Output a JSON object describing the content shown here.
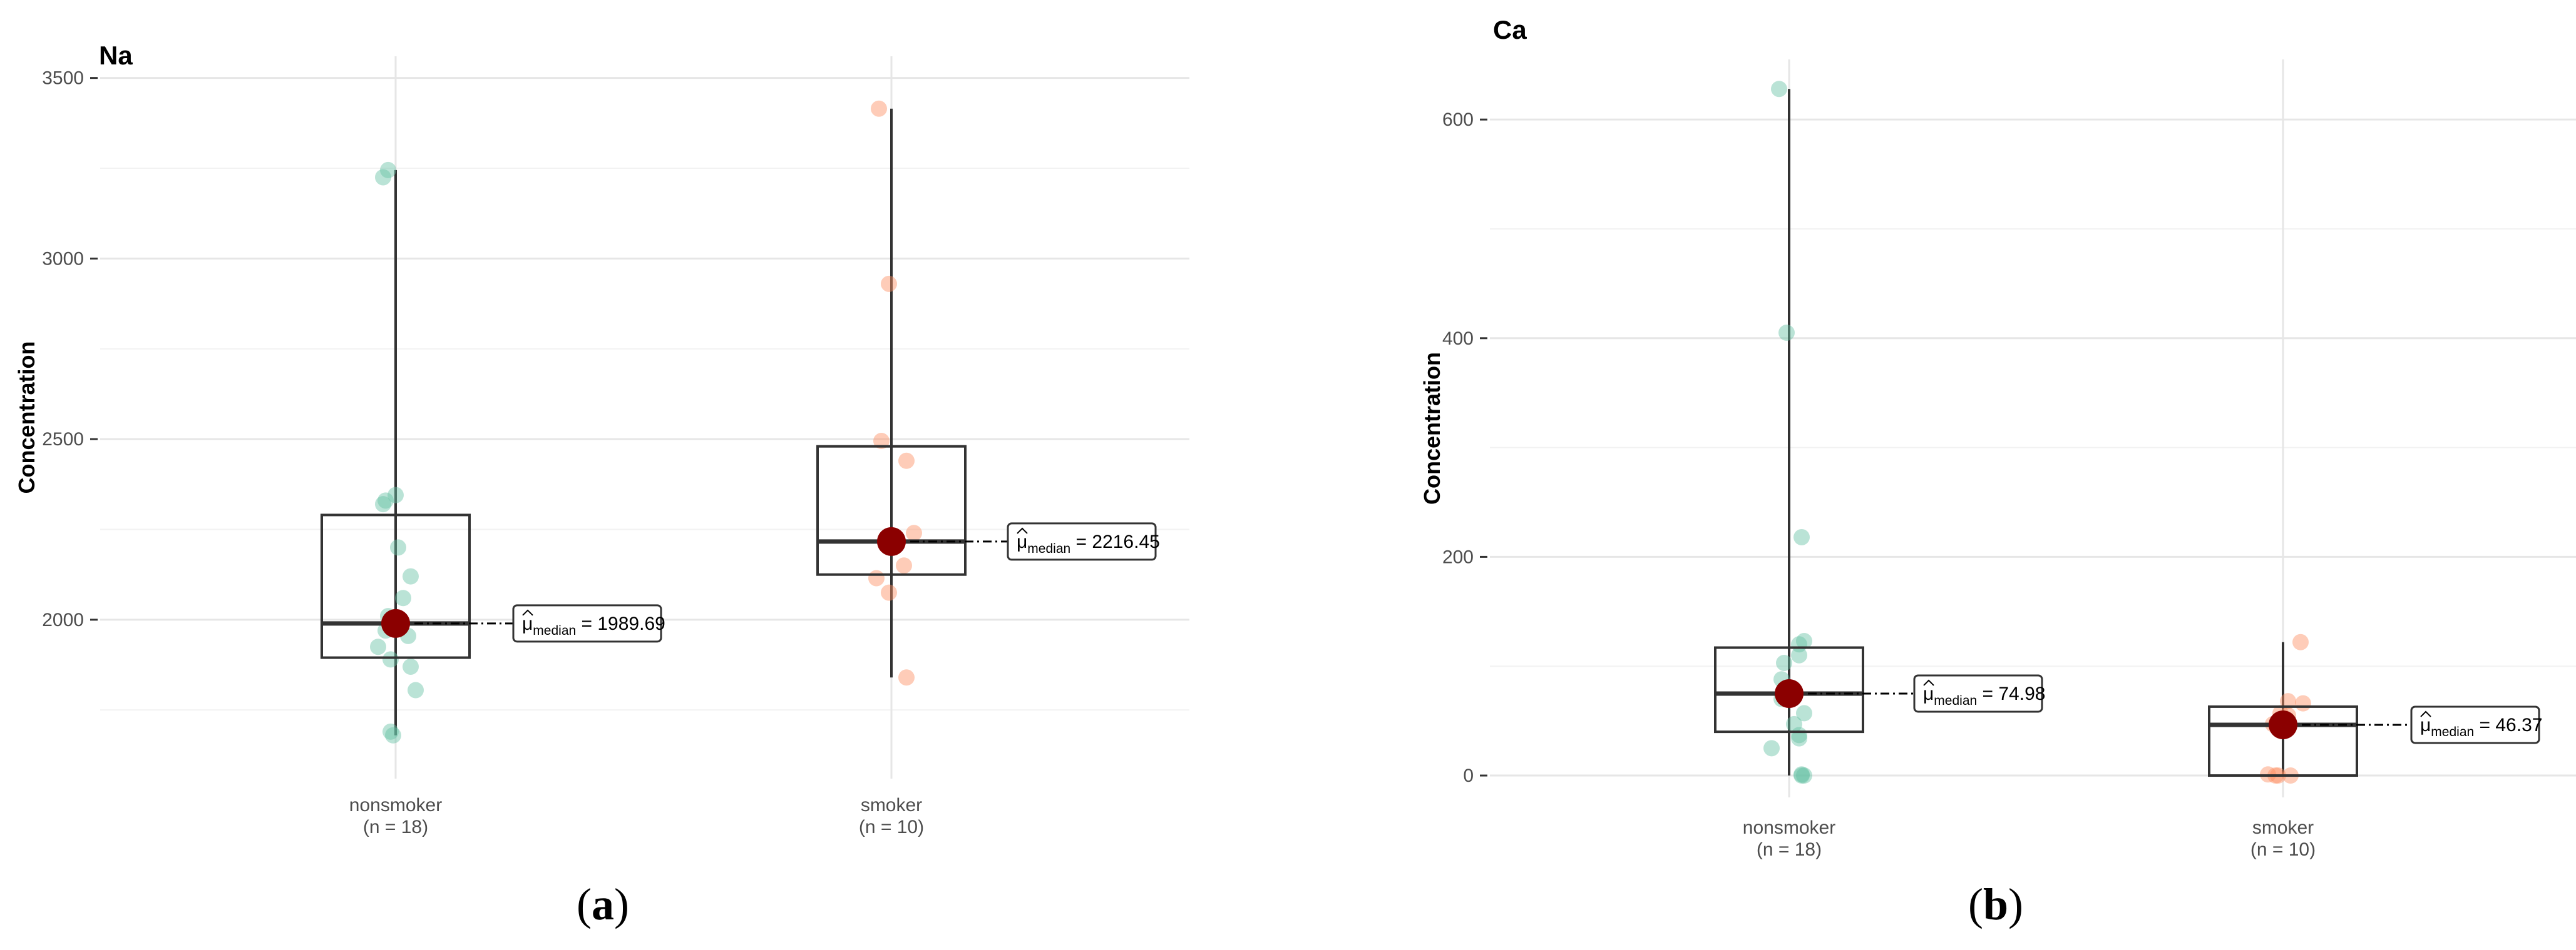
{
  "chart_data": [
    {
      "type": "box",
      "panel_label": "(a)",
      "title": "Na",
      "xlabel": "",
      "ylabel": "Concentration",
      "ylim": [
        1560,
        3560
      ],
      "yticks": [
        2000,
        2500,
        3000,
        3500
      ],
      "ytick_labels": [
        "2000",
        "2500",
        "3000",
        "3500"
      ],
      "grid": true,
      "categories": [
        {
          "name": "nonsmoker",
          "n_label": "(n = 18)",
          "color": "#66c2a5",
          "q1": 1895,
          "median": 1989.69,
          "q3": 2290,
          "whisker_low": 1680,
          "whisker_high": 3245,
          "points": [
            {
              "x": -0.03,
              "y": 3245
            },
            {
              "x": -0.05,
              "y": 3225
            },
            {
              "x": -0.05,
              "y": 2320
            },
            {
              "x": -0.04,
              "y": 2330
            },
            {
              "x": 0.0,
              "y": 2345
            },
            {
              "x": 0.01,
              "y": 2200
            },
            {
              "x": 0.06,
              "y": 2120
            },
            {
              "x": 0.03,
              "y": 2060
            },
            {
              "x": -0.03,
              "y": 2010
            },
            {
              "x": 0.01,
              "y": 1990
            },
            {
              "x": -0.04,
              "y": 1970
            },
            {
              "x": 0.05,
              "y": 1955
            },
            {
              "x": -0.07,
              "y": 1925
            },
            {
              "x": -0.02,
              "y": 1890
            },
            {
              "x": 0.06,
              "y": 1870
            },
            {
              "x": 0.08,
              "y": 1805
            },
            {
              "x": -0.02,
              "y": 1690
            },
            {
              "x": -0.01,
              "y": 1680
            }
          ],
          "median_annotation": "= 1989.69"
        },
        {
          "name": "smoker",
          "n_label": "(n = 10)",
          "color": "#fc8d62",
          "q1": 2125,
          "median": 2216.45,
          "q3": 2480,
          "whisker_low": 1840,
          "whisker_high": 3415,
          "points": [
            {
              "x": -0.05,
              "y": 3415
            },
            {
              "x": -0.01,
              "y": 2930
            },
            {
              "x": -0.04,
              "y": 2495
            },
            {
              "x": 0.06,
              "y": 2440
            },
            {
              "x": 0.09,
              "y": 2240
            },
            {
              "x": 0.05,
              "y": 2150
            },
            {
              "x": -0.06,
              "y": 2115
            },
            {
              "x": -0.01,
              "y": 2075
            },
            {
              "x": 0.06,
              "y": 1840
            },
            {
              "x": 0.01,
              "y": 2200
            }
          ],
          "median_annotation": "= 2216.45"
        }
      ]
    },
    {
      "type": "box",
      "panel_label": "(b)",
      "title": "Ca",
      "xlabel": "",
      "ylabel": "Concentration",
      "ylim": [
        -20,
        655
      ],
      "yticks": [
        0,
        200,
        400,
        600
      ],
      "ytick_labels": [
        "0",
        "200",
        "400",
        "600"
      ],
      "grid": true,
      "categories": [
        {
          "name": "nonsmoker",
          "n_label": "(n = 18)",
          "color": "#66c2a5",
          "q1": 40,
          "median": 74.98,
          "q3": 117,
          "whisker_low": 0,
          "whisker_high": 628,
          "points": [
            {
              "x": -0.04,
              "y": 628
            },
            {
              "x": -0.01,
              "y": 405
            },
            {
              "x": 0.05,
              "y": 218
            },
            {
              "x": 0.06,
              "y": 123
            },
            {
              "x": 0.04,
              "y": 120
            },
            {
              "x": 0.04,
              "y": 110
            },
            {
              "x": -0.02,
              "y": 103
            },
            {
              "x": -0.03,
              "y": 88
            },
            {
              "x": -0.03,
              "y": 70
            },
            {
              "x": 0.0,
              "y": 70
            },
            {
              "x": 0.06,
              "y": 57
            },
            {
              "x": 0.02,
              "y": 47
            },
            {
              "x": 0.04,
              "y": 37
            },
            {
              "x": 0.04,
              "y": 34
            },
            {
              "x": -0.07,
              "y": 25
            },
            {
              "x": 0.05,
              "y": 1
            },
            {
              "x": 0.06,
              "y": 0
            },
            {
              "x": 0.05,
              "y": 0
            }
          ],
          "median_annotation": "= 74.98"
        },
        {
          "name": "smoker",
          "n_label": "(n = 10)",
          "color": "#fc8d62",
          "q1": 0,
          "median": 46.37,
          "q3": 63,
          "whisker_low": 0,
          "whisker_high": 122,
          "points": [
            {
              "x": 0.07,
              "y": 122
            },
            {
              "x": 0.02,
              "y": 68
            },
            {
              "x": 0.08,
              "y": 66
            },
            {
              "x": -0.01,
              "y": 57
            },
            {
              "x": 0.02,
              "y": 55
            },
            {
              "x": -0.04,
              "y": 47
            },
            {
              "x": -0.06,
              "y": 1
            },
            {
              "x": -0.03,
              "y": 0
            },
            {
              "x": -0.02,
              "y": 0
            },
            {
              "x": 0.03,
              "y": 0
            }
          ],
          "median_annotation": "= 46.37"
        }
      ]
    }
  ]
}
